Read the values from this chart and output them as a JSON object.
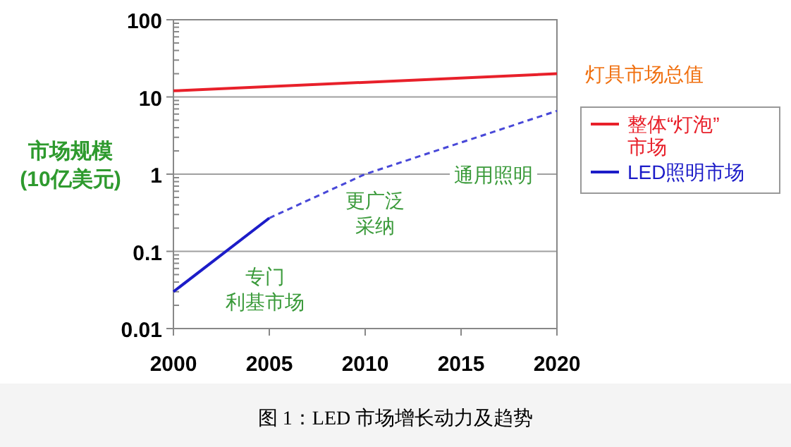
{
  "chart_data": {
    "type": "line",
    "ylabel": "市场规模\n(10亿美元)",
    "xlim": [
      2000,
      2020
    ],
    "xticks": [
      2000,
      2005,
      2010,
      2015,
      2020
    ],
    "ylim": [
      0.01,
      100
    ],
    "yticks": [
      0.01,
      0.1,
      1,
      10,
      100
    ],
    "log": true,
    "grid": "y",
    "legend": "right",
    "series": [
      {
        "name": "整体“灯泡”\n市场",
        "color": "#e8202a",
        "x": [
          2000,
          2020
        ],
        "values": [
          12,
          20
        ],
        "line_style": "solid"
      },
      {
        "name": "LED照明市场",
        "color": "#1c1cc8",
        "x": [
          2000,
          2005
        ],
        "values": [
          0.03,
          0.27
        ],
        "line_style": "solid"
      },
      {
        "color": "#4848d8",
        "x": [
          2005,
          2010,
          2020
        ],
        "values": [
          0.27,
          1,
          6.6
        ],
        "line_style": "dashed"
      }
    ],
    "annotations": [
      {
        "text": "灯具市场总值",
        "x": 2020,
        "y": 20
      },
      "专门利基市场",
      "更广泛采纳",
      "通用照明",
      "图 1：LED 市场增长动力及趋势"
    ]
  }
}
